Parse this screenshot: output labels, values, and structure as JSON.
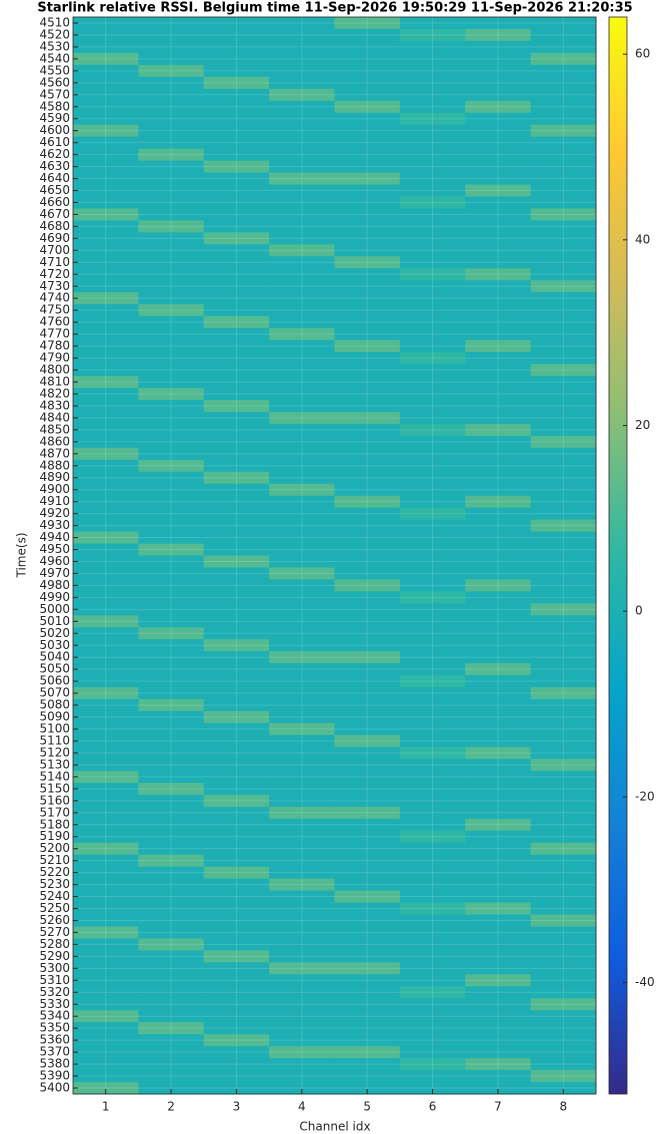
{
  "chart_data": {
    "type": "heatmap",
    "title": "Starlink relative RSSI. Belgium time 11-Sep-2026 19:50:29 11-Sep-2026 21:20:35",
    "xlabel": "Channel idx",
    "ylabel": "Time(s)",
    "x": [
      1,
      2,
      3,
      4,
      5,
      6,
      7,
      8
    ],
    "y": [
      4510,
      4520,
      4530,
      4540,
      4550,
      4560,
      4570,
      4580,
      4590,
      4600,
      4610,
      4620,
      4630,
      4640,
      4650,
      4660,
      4670,
      4680,
      4690,
      4700,
      4710,
      4720,
      4730,
      4740,
      4750,
      4760,
      4770,
      4780,
      4790,
      4800,
      4810,
      4820,
      4830,
      4840,
      4850,
      4860,
      4870,
      4880,
      4890,
      4900,
      4910,
      4920,
      4930,
      4940,
      4950,
      4960,
      4970,
      4980,
      4990,
      5000,
      5010,
      5020,
      5030,
      5040,
      5050,
      5060,
      5070,
      5080,
      5090,
      5100,
      5110,
      5120,
      5130,
      5140,
      5150,
      5160,
      5170,
      5180,
      5190,
      5200,
      5210,
      5220,
      5230,
      5240,
      5250,
      5260,
      5270,
      5280,
      5290,
      5300,
      5310,
      5320,
      5330,
      5340,
      5350,
      5360,
      5370,
      5380,
      5390,
      5400
    ],
    "z": [
      [
        0,
        0,
        0,
        0,
        12,
        0,
        0,
        0
      ],
      [
        0,
        0,
        0,
        0,
        0,
        6,
        12,
        0
      ],
      [
        0,
        0,
        0,
        0,
        0,
        0,
        0,
        0
      ],
      [
        12,
        0,
        0,
        0,
        0,
        0,
        0,
        12
      ],
      [
        0,
        12,
        0,
        0,
        0,
        0,
        0,
        0
      ],
      [
        0,
        0,
        12,
        0,
        0,
        0,
        0,
        0
      ],
      [
        0,
        0,
        0,
        12,
        0,
        0,
        0,
        0
      ],
      [
        0,
        0,
        0,
        0,
        12,
        0,
        12,
        0
      ],
      [
        0,
        0,
        0,
        0,
        0,
        6,
        0,
        0
      ],
      [
        12,
        0,
        0,
        0,
        0,
        0,
        0,
        12
      ],
      [
        0,
        0,
        0,
        0,
        0,
        0,
        0,
        0
      ],
      [
        0,
        12,
        0,
        0,
        0,
        0,
        0,
        0
      ],
      [
        0,
        0,
        12,
        0,
        0,
        0,
        0,
        0
      ],
      [
        0,
        0,
        0,
        12,
        12,
        0,
        0,
        0
      ],
      [
        0,
        0,
        0,
        0,
        0,
        0,
        12,
        0
      ],
      [
        0,
        0,
        0,
        0,
        0,
        6,
        0,
        0
      ],
      [
        12,
        0,
        0,
        0,
        0,
        0,
        0,
        12
      ],
      [
        0,
        12,
        0,
        0,
        0,
        0,
        0,
        0
      ],
      [
        0,
        0,
        12,
        0,
        0,
        0,
        0,
        0
      ],
      [
        0,
        0,
        0,
        12,
        0,
        0,
        0,
        0
      ],
      [
        0,
        0,
        0,
        0,
        12,
        0,
        0,
        0
      ],
      [
        0,
        0,
        0,
        0,
        0,
        6,
        12,
        0
      ],
      [
        0,
        0,
        0,
        0,
        0,
        0,
        0,
        12
      ],
      [
        12,
        0,
        0,
        0,
        0,
        0,
        0,
        0
      ],
      [
        0,
        12,
        0,
        0,
        0,
        0,
        0,
        0
      ],
      [
        0,
        0,
        12,
        0,
        0,
        0,
        0,
        0
      ],
      [
        0,
        0,
        0,
        12,
        0,
        0,
        0,
        0
      ],
      [
        0,
        0,
        0,
        0,
        12,
        0,
        12,
        0
      ],
      [
        0,
        0,
        0,
        0,
        0,
        6,
        0,
        0
      ],
      [
        0,
        0,
        0,
        0,
        0,
        0,
        0,
        12
      ],
      [
        12,
        0,
        0,
        0,
        0,
        0,
        0,
        0
      ],
      [
        0,
        12,
        0,
        0,
        0,
        0,
        0,
        0
      ],
      [
        0,
        0,
        12,
        0,
        0,
        0,
        0,
        0
      ],
      [
        0,
        0,
        0,
        12,
        12,
        0,
        0,
        0
      ],
      [
        0,
        0,
        0,
        0,
        0,
        6,
        12,
        0
      ],
      [
        0,
        0,
        0,
        0,
        0,
        0,
        0,
        12
      ],
      [
        12,
        0,
        0,
        0,
        0,
        0,
        0,
        0
      ],
      [
        0,
        12,
        0,
        0,
        0,
        0,
        0,
        0
      ],
      [
        0,
        0,
        12,
        0,
        0,
        0,
        0,
        0
      ],
      [
        0,
        0,
        0,
        12,
        0,
        0,
        0,
        0
      ],
      [
        0,
        0,
        0,
        0,
        12,
        0,
        12,
        0
      ],
      [
        0,
        0,
        0,
        0,
        0,
        6,
        0,
        0
      ],
      [
        0,
        0,
        0,
        0,
        0,
        0,
        0,
        12
      ],
      [
        12,
        0,
        0,
        0,
        0,
        0,
        0,
        0
      ],
      [
        0,
        12,
        0,
        0,
        0,
        0,
        0,
        0
      ],
      [
        0,
        0,
        12,
        0,
        0,
        0,
        0,
        0
      ],
      [
        0,
        0,
        0,
        12,
        0,
        0,
        0,
        0
      ],
      [
        0,
        0,
        0,
        0,
        12,
        0,
        12,
        0
      ],
      [
        0,
        0,
        0,
        0,
        0,
        6,
        0,
        0
      ],
      [
        0,
        0,
        0,
        0,
        0,
        0,
        0,
        12
      ],
      [
        12,
        0,
        0,
        0,
        0,
        0,
        0,
        0
      ],
      [
        0,
        12,
        0,
        0,
        0,
        0,
        0,
        0
      ],
      [
        0,
        0,
        12,
        0,
        0,
        0,
        0,
        0
      ],
      [
        0,
        0,
        0,
        12,
        12,
        0,
        0,
        0
      ],
      [
        0,
        0,
        0,
        0,
        0,
        0,
        12,
        0
      ],
      [
        0,
        0,
        0,
        0,
        0,
        6,
        0,
        0
      ],
      [
        12,
        0,
        0,
        0,
        0,
        0,
        0,
        12
      ],
      [
        0,
        12,
        0,
        0,
        0,
        0,
        0,
        0
      ],
      [
        0,
        0,
        12,
        0,
        0,
        0,
        0,
        0
      ],
      [
        0,
        0,
        0,
        12,
        0,
        0,
        0,
        0
      ],
      [
        0,
        0,
        0,
        0,
        12,
        0,
        0,
        0
      ],
      [
        0,
        0,
        0,
        0,
        0,
        6,
        12,
        0
      ],
      [
        0,
        0,
        0,
        0,
        0,
        0,
        0,
        12
      ],
      [
        12,
        0,
        0,
        0,
        0,
        0,
        0,
        0
      ],
      [
        0,
        12,
        0,
        0,
        0,
        0,
        0,
        0
      ],
      [
        0,
        0,
        12,
        0,
        0,
        0,
        0,
        0
      ],
      [
        0,
        0,
        0,
        12,
        12,
        0,
        0,
        0
      ],
      [
        0,
        0,
        0,
        0,
        0,
        0,
        12,
        0
      ],
      [
        0,
        0,
        0,
        0,
        0,
        6,
        0,
        0
      ],
      [
        12,
        0,
        0,
        0,
        0,
        0,
        0,
        12
      ],
      [
        0,
        12,
        0,
        0,
        0,
        0,
        0,
        0
      ],
      [
        0,
        0,
        12,
        0,
        0,
        0,
        0,
        0
      ],
      [
        0,
        0,
        0,
        12,
        0,
        0,
        0,
        0
      ],
      [
        0,
        0,
        0,
        0,
        12,
        0,
        0,
        0
      ],
      [
        0,
        0,
        0,
        0,
        0,
        6,
        12,
        0
      ],
      [
        0,
        0,
        0,
        0,
        0,
        0,
        0,
        12
      ],
      [
        12,
        0,
        0,
        0,
        0,
        0,
        0,
        0
      ],
      [
        0,
        12,
        0,
        0,
        0,
        0,
        0,
        0
      ],
      [
        0,
        0,
        12,
        0,
        0,
        0,
        0,
        0
      ],
      [
        0,
        0,
        0,
        12,
        12,
        0,
        0,
        0
      ],
      [
        0,
        0,
        0,
        0,
        0,
        0,
        12,
        0
      ],
      [
        0,
        0,
        0,
        0,
        0,
        6,
        0,
        0
      ],
      [
        0,
        0,
        0,
        0,
        0,
        0,
        0,
        12
      ],
      [
        12,
        0,
        0,
        0,
        0,
        0,
        0,
        0
      ],
      [
        0,
        12,
        0,
        0,
        0,
        0,
        0,
        0
      ],
      [
        0,
        0,
        12,
        0,
        0,
        0,
        0,
        0
      ],
      [
        0,
        0,
        0,
        12,
        12,
        0,
        0,
        0
      ],
      [
        0,
        0,
        0,
        0,
        0,
        6,
        12,
        0
      ],
      [
        0,
        0,
        0,
        0,
        0,
        0,
        0,
        12
      ],
      [
        12,
        0,
        0,
        0,
        0,
        0,
        0,
        0
      ]
    ],
    "xlim": [
      0.5,
      8.5
    ],
    "xticks": [
      1,
      2,
      3,
      4,
      5,
      6,
      7,
      8
    ],
    "ylim": [
      4505,
      5405
    ],
    "y_reversed": true,
    "yticks": [
      4510,
      4520,
      4530,
      4540,
      4550,
      4560,
      4570,
      4580,
      4590,
      4600,
      4610,
      4620,
      4630,
      4640,
      4650,
      4660,
      4670,
      4680,
      4690,
      4700,
      4710,
      4720,
      4730,
      4740,
      4750,
      4760,
      4770,
      4780,
      4790,
      4800,
      4810,
      4820,
      4830,
      4840,
      4850,
      4860,
      4870,
      4880,
      4890,
      4900,
      4910,
      4920,
      4930,
      4940,
      4950,
      4960,
      4970,
      4980,
      4990,
      5000,
      5010,
      5020,
      5030,
      5040,
      5050,
      5060,
      5070,
      5080,
      5090,
      5100,
      5110,
      5120,
      5130,
      5140,
      5150,
      5160,
      5170,
      5180,
      5190,
      5200,
      5210,
      5220,
      5230,
      5240,
      5250,
      5260,
      5270,
      5280,
      5290,
      5300,
      5310,
      5320,
      5330,
      5340,
      5350,
      5360,
      5370,
      5380,
      5390,
      5400
    ],
    "colormap": "parula",
    "clim": [
      -52,
      64
    ],
    "cticks": [
      -40,
      -20,
      0,
      20,
      40,
      60
    ],
    "grid": true
  }
}
